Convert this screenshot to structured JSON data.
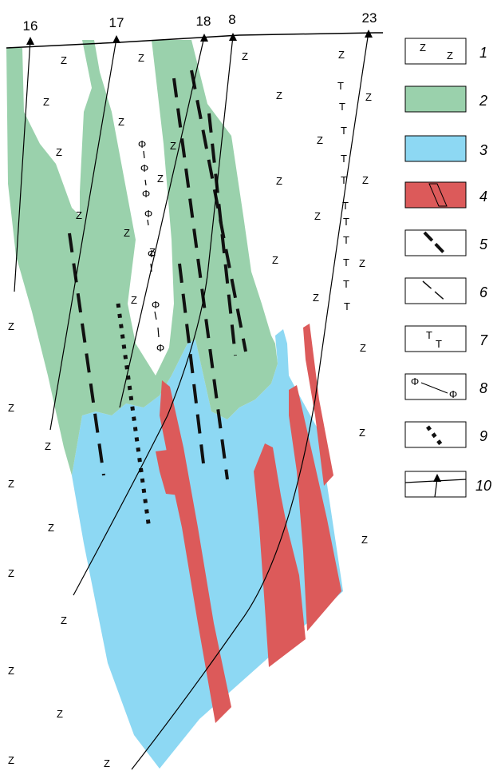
{
  "boreholes": [
    {
      "label": "16"
    },
    {
      "label": "17"
    },
    {
      "label": "18"
    },
    {
      "label": "8"
    },
    {
      "label": "23"
    }
  ],
  "legend": [
    {
      "number": "1",
      "sample": [
        "Z",
        "Z"
      ]
    },
    {
      "number": "2",
      "fill": "#9ad1ac"
    },
    {
      "number": "3",
      "fill": "#8dd8f3"
    },
    {
      "number": "4",
      "fill": "#dc5a5a"
    },
    {
      "number": "5"
    },
    {
      "number": "6"
    },
    {
      "number": "7",
      "sample": [
        "T",
        "T"
      ]
    },
    {
      "number": "8",
      "sample": [
        "Φ",
        "Φ"
      ]
    },
    {
      "number": "9"
    },
    {
      "number": "10"
    }
  ],
  "symbols": {
    "z": "Z",
    "t": "T",
    "phi": "Φ"
  },
  "colors": {
    "green": "#9ad1ac",
    "blue": "#8dd8f3",
    "red": "#dc5a5a",
    "line": "#000000"
  }
}
